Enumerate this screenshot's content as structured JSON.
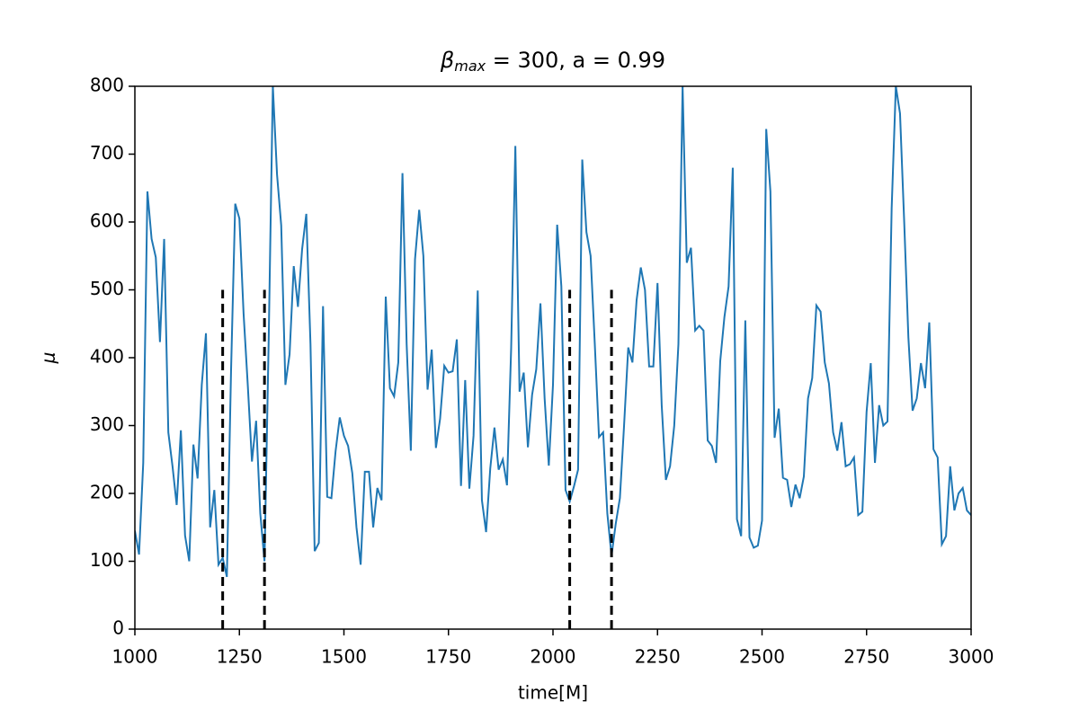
{
  "chart_data": {
    "type": "line",
    "title_symbol": "β",
    "title_subscript": "max",
    "title_rest": " = 300, a = 0.99",
    "xlabel": "time[M]",
    "ylabel": "μ",
    "x": [
      1000,
      1010,
      1020,
      1030,
      1040,
      1050,
      1060,
      1070,
      1080,
      1090,
      1100,
      1110,
      1120,
      1130,
      1140,
      1150,
      1160,
      1170,
      1180,
      1190,
      1200,
      1210,
      1220,
      1230,
      1240,
      1250,
      1260,
      1270,
      1280,
      1290,
      1300,
      1310,
      1320,
      1330,
      1340,
      1350,
      1360,
      1370,
      1380,
      1390,
      1400,
      1410,
      1420,
      1430,
      1440,
      1450,
      1460,
      1470,
      1480,
      1490,
      1500,
      1510,
      1520,
      1530,
      1540,
      1550,
      1560,
      1570,
      1580,
      1590,
      1600,
      1610,
      1620,
      1630,
      1640,
      1650,
      1660,
      1670,
      1680,
      1690,
      1700,
      1710,
      1720,
      1730,
      1740,
      1750,
      1760,
      1770,
      1780,
      1790,
      1800,
      1810,
      1820,
      1830,
      1840,
      1850,
      1860,
      1870,
      1880,
      1890,
      1900,
      1910,
      1920,
      1930,
      1940,
      1950,
      1960,
      1970,
      1980,
      1990,
      2000,
      2010,
      2020,
      2030,
      2040,
      2050,
      2060,
      2070,
      2080,
      2090,
      2100,
      2110,
      2120,
      2130,
      2140,
      2150,
      2160,
      2170,
      2180,
      2190,
      2200,
      2210,
      2220,
      2230,
      2240,
      2250,
      2260,
      2270,
      2280,
      2290,
      2300,
      2310,
      2320,
      2330,
      2340,
      2350,
      2360,
      2370,
      2380,
      2390,
      2400,
      2410,
      2420,
      2430,
      2440,
      2450,
      2460,
      2470,
      2480,
      2490,
      2500,
      2510,
      2520,
      2530,
      2540,
      2550,
      2560,
      2570,
      2580,
      2590,
      2600,
      2610,
      2620,
      2630,
      2640,
      2650,
      2660,
      2670,
      2680,
      2690,
      2700,
      2710,
      2720,
      2730,
      2740,
      2750,
      2760,
      2770,
      2780,
      2790,
      2800,
      2810,
      2820,
      2830,
      2840,
      2850,
      2860,
      2870,
      2880,
      2890,
      2900,
      2910,
      2920,
      2930,
      2940,
      2950,
      2960,
      2970,
      2980,
      2990,
      3000
    ],
    "series": [
      {
        "color": "#1f77b4",
        "values": [
          145,
          110,
          245,
          645,
          575,
          548,
          423,
          575,
          290,
          240,
          183,
          293,
          138,
          100,
          272,
          222,
          360,
          436,
          150,
          205,
          95,
          105,
          77,
          380,
          627,
          605,
          465,
          360,
          247,
          307,
          170,
          100,
          425,
          800,
          670,
          595,
          360,
          405,
          535,
          475,
          560,
          612,
          420,
          115,
          127,
          476,
          195,
          193,
          262,
          312,
          285,
          270,
          230,
          150,
          95,
          232,
          232,
          150,
          208,
          190,
          490,
          355,
          343,
          393,
          672,
          420,
          263,
          545,
          618,
          550,
          353,
          412,
          267,
          310,
          388,
          378,
          380,
          427,
          211,
          367,
          207,
          285,
          499,
          190,
          143,
          237,
          297,
          235,
          250,
          212,
          415,
          712,
          350,
          378,
          268,
          345,
          383,
          480,
          340,
          241,
          360,
          596,
          505,
          205,
          188,
          210,
          235,
          692,
          585,
          550,
          420,
          283,
          290,
          170,
          108,
          155,
          193,
          300,
          415,
          393,
          485,
          533,
          500,
          387,
          387,
          510,
          330,
          220,
          240,
          300,
          420,
          800,
          540,
          562,
          440,
          447,
          440,
          278,
          270,
          245,
          395,
          460,
          505,
          680,
          162,
          137,
          455,
          135,
          120,
          123,
          160,
          737,
          645,
          282,
          325,
          223,
          220,
          180,
          213,
          193,
          225,
          340,
          370,
          477,
          468,
          393,
          362,
          290,
          263,
          305,
          240,
          243,
          253,
          168,
          173,
          320,
          392,
          245,
          330,
          300,
          306,
          620,
          800,
          760,
          600,
          430,
          322,
          340,
          392,
          355,
          452,
          265,
          253,
          125,
          137,
          240,
          175,
          200,
          208,
          175,
          168
        ]
      }
    ],
    "vlines": {
      "x": [
        1210,
        1310,
        2040,
        2140
      ],
      "ymax": 500,
      "color": "#000000"
    },
    "xlim": [
      1000,
      3000
    ],
    "xticks": [
      1000,
      1250,
      1500,
      1750,
      2000,
      2250,
      2500,
      2750,
      3000
    ],
    "ylim": [
      0,
      800
    ],
    "yticks": [
      0,
      100,
      200,
      300,
      400,
      500,
      600,
      700,
      800
    ]
  }
}
